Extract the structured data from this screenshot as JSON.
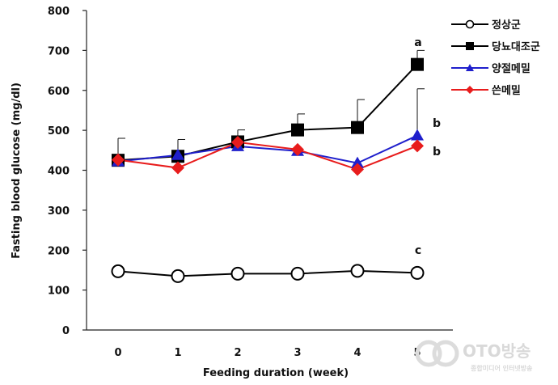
{
  "chart_data": {
    "type": "line",
    "title": "",
    "xlabel": "Feeding duration  (week)",
    "ylabel": "Fasting blood glucose  (mg/dl)",
    "x": [
      0,
      1,
      2,
      3,
      4,
      5
    ],
    "x_ticks": [
      "0",
      "1",
      "2",
      "3",
      "4",
      "5"
    ],
    "ylim": [
      0,
      800
    ],
    "y_ticks": [
      "0",
      "100",
      "200",
      "300",
      "400",
      "500",
      "600",
      "700",
      "800"
    ],
    "grid": false,
    "legend_position": "top-right",
    "series": [
      {
        "name": "정상군",
        "color": "#000000",
        "marker": "circle-open",
        "values": [
          147,
          135,
          141,
          141,
          148,
          143
        ],
        "error": [
          0,
          0,
          0,
          0,
          0,
          0
        ]
      },
      {
        "name": "당뇨대조군",
        "color": "#000000",
        "marker": "square",
        "values": [
          425,
          435,
          471,
          501,
          507,
          665
        ],
        "error": [
          55,
          42,
          30,
          40,
          70,
          35
        ]
      },
      {
        "name": "양절메밀",
        "color": "#1f1fcc",
        "marker": "triangle",
        "values": [
          422,
          438,
          460,
          448,
          418,
          487
        ],
        "error": [
          0,
          0,
          0,
          0,
          0,
          117
        ]
      },
      {
        "name": "쓴메밀",
        "color": "#e81c1c",
        "marker": "diamond",
        "values": [
          426,
          406,
          470,
          452,
          402,
          461
        ],
        "error": [
          0,
          0,
          0,
          0,
          0,
          0
        ]
      }
    ],
    "annotations": [
      {
        "text": "a",
        "series": "당뇨대조군"
      },
      {
        "text": "b",
        "series": "양절메밀"
      },
      {
        "text": "b",
        "series": "쓴메밀"
      },
      {
        "text": "c",
        "series": "정상군"
      }
    ]
  },
  "watermark": {
    "text": "OTO방송",
    "subtext": "종합미디어 인터넷방송"
  }
}
